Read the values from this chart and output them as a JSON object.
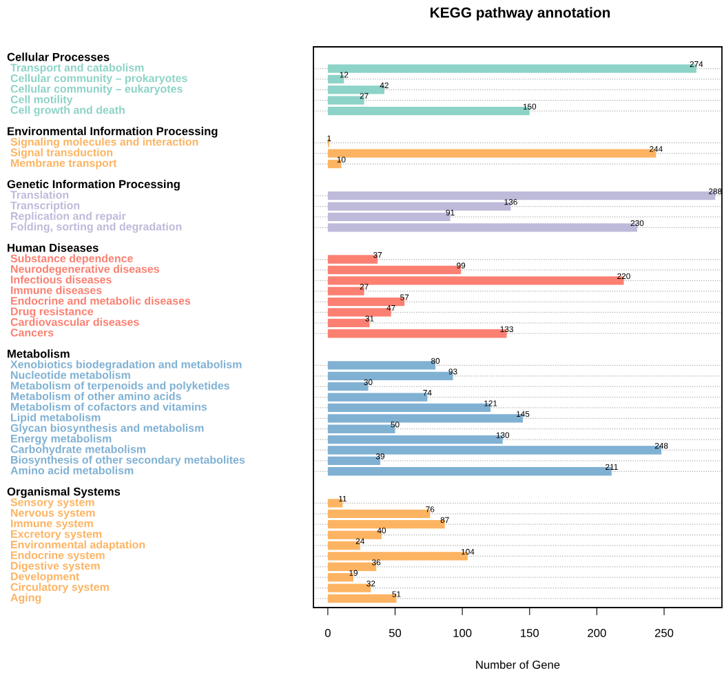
{
  "chart_data": {
    "type": "bar",
    "orientation": "horizontal",
    "title": "KEGG pathway annotation",
    "xlabel": "Number of Gene",
    "categories": [
      "Cellular Processes",
      "Transport and catabolism",
      "Cellular community – prokaryotes",
      "Cellular community – eukaryotes",
      "Cell motility",
      "Cell growth and death",
      null,
      "Environmental Information Processing",
      "Signaling molecules and interaction",
      "Signal transduction",
      "Membrane transport",
      null,
      "Genetic Information Processing",
      "Translation",
      "Transcription",
      "Replication and repair",
      "Folding, sorting and degradation",
      null,
      "Human Diseases",
      "Substance dependence",
      "Neurodegenerative diseases",
      "Infectious diseases",
      "Immune diseases",
      "Endocrine and metabolic diseases",
      "Drug resistance",
      "Cardiovascular diseases",
      "Cancers",
      null,
      "Metabolism",
      "Xenobiotics biodegradation and metabolism",
      "Nucleotide metabolism",
      "Metabolism of terpenoids and polyketides",
      "Metabolism of other amino acids",
      "Metabolism of cofactors and vitamins",
      "Lipid metabolism",
      "Glycan biosynthesis and metabolism",
      "Energy metabolism",
      "Carbohydrate metabolism",
      "Biosynthesis of other secondary metabolites",
      "Amino acid metabolism",
      null,
      "Organismal Systems",
      "Sensory system",
      "Nervous system",
      "Immune system",
      "Excretory system",
      "Environmental adaptation",
      "Endocrine system",
      "Digestive system",
      "Development",
      "Circulatory system",
      "Aging"
    ],
    "series": [
      {
        "color": "#8dd3c7",
        "values": [
          null,
          274,
          12,
          42,
          27,
          150,
          null,
          null,
          null,
          null,
          null,
          null,
          null,
          null,
          null,
          null,
          null,
          null,
          null,
          null,
          null,
          null,
          null,
          null,
          null,
          null,
          null,
          null,
          null,
          null,
          null,
          null,
          null,
          null,
          null,
          null,
          null,
          null,
          null,
          null,
          null,
          null,
          null,
          null,
          null,
          null,
          null,
          null,
          null,
          null,
          null,
          null
        ]
      },
      {
        "color": "#fdb462",
        "values": [
          null,
          null,
          null,
          null,
          null,
          null,
          null,
          null,
          1,
          244,
          10,
          null,
          null,
          null,
          null,
          null,
          null,
          null,
          null,
          null,
          null,
          null,
          null,
          null,
          null,
          null,
          null,
          null,
          null,
          null,
          null,
          null,
          null,
          null,
          null,
          null,
          null,
          null,
          null,
          null,
          null,
          null,
          null,
          null,
          null,
          null,
          null,
          null,
          null,
          null,
          null,
          null
        ]
      },
      {
        "color": "#bebada",
        "values": [
          null,
          null,
          null,
          null,
          null,
          null,
          null,
          null,
          null,
          null,
          null,
          null,
          null,
          288,
          136,
          91,
          230,
          null,
          null,
          null,
          null,
          null,
          null,
          null,
          null,
          null,
          null,
          null,
          null,
          null,
          null,
          null,
          null,
          null,
          null,
          null,
          null,
          null,
          null,
          null,
          null,
          null,
          null,
          null,
          null,
          null,
          null,
          null,
          null,
          null,
          null,
          null
        ]
      },
      {
        "color": "#fb8072",
        "values": [
          null,
          null,
          null,
          null,
          null,
          null,
          null,
          null,
          null,
          null,
          null,
          null,
          null,
          null,
          null,
          null,
          null,
          null,
          null,
          37,
          99,
          220,
          27,
          57,
          47,
          31,
          133,
          null,
          null,
          null,
          null,
          null,
          null,
          null,
          null,
          null,
          null,
          null,
          null,
          null,
          null,
          null,
          null,
          null,
          null,
          null,
          null,
          null,
          null,
          null,
          null,
          null
        ]
      },
      {
        "color": "#80b1d3",
        "values": [
          null,
          null,
          null,
          null,
          null,
          null,
          null,
          null,
          null,
          null,
          null,
          null,
          null,
          null,
          null,
          null,
          null,
          null,
          null,
          null,
          null,
          null,
          null,
          null,
          null,
          null,
          null,
          null,
          null,
          80,
          93,
          30,
          74,
          121,
          145,
          50,
          130,
          248,
          39,
          211,
          null,
          null,
          null,
          null,
          null,
          null,
          null,
          null,
          null,
          null,
          null,
          null
        ]
      },
      {
        "color": "#fdb462",
        "values": [
          null,
          null,
          null,
          null,
          null,
          null,
          null,
          null,
          null,
          null,
          null,
          null,
          null,
          null,
          null,
          null,
          null,
          null,
          null,
          null,
          null,
          null,
          null,
          null,
          null,
          null,
          null,
          null,
          null,
          null,
          null,
          null,
          null,
          null,
          null,
          null,
          null,
          null,
          null,
          null,
          null,
          null,
          11,
          76,
          87,
          40,
          24,
          104,
          36,
          19,
          32,
          51
        ]
      }
    ],
    "xlim": [
      -10.7,
      293
    ],
    "xticks": [
      0,
      50,
      100,
      150,
      200,
      250
    ],
    "data_labels": true,
    "grid": "y",
    "line_style": "dotted"
  }
}
